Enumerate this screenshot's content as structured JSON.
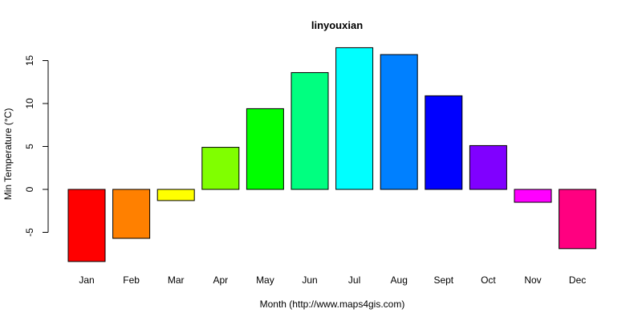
{
  "chart_data": {
    "type": "bar",
    "title": "linyouxian",
    "xlabel": "Month (http://www.maps4gis.com)",
    "ylabel": "Min Temperature (°C)",
    "categories": [
      "Jan",
      "Feb",
      "Mar",
      "Apr",
      "May",
      "Jun",
      "Jul",
      "Aug",
      "Sept",
      "Oct",
      "Nov",
      "Dec"
    ],
    "values": [
      -8.4,
      -5.7,
      -1.3,
      4.9,
      9.4,
      13.6,
      16.5,
      15.7,
      10.9,
      5.1,
      -1.5,
      -6.9
    ],
    "colors": [
      "#FF0000",
      "#FF8000",
      "#FFFF00",
      "#80FF00",
      "#00FF00",
      "#00FF80",
      "#00FFFF",
      "#0080FF",
      "#0000FF",
      "#8000FF",
      "#FF00FF",
      "#FF0080"
    ],
    "yticks": [
      -5,
      0,
      5,
      10,
      15
    ],
    "ylim": [
      -8.5,
      16.5
    ],
    "grid": false,
    "legend": "none"
  }
}
